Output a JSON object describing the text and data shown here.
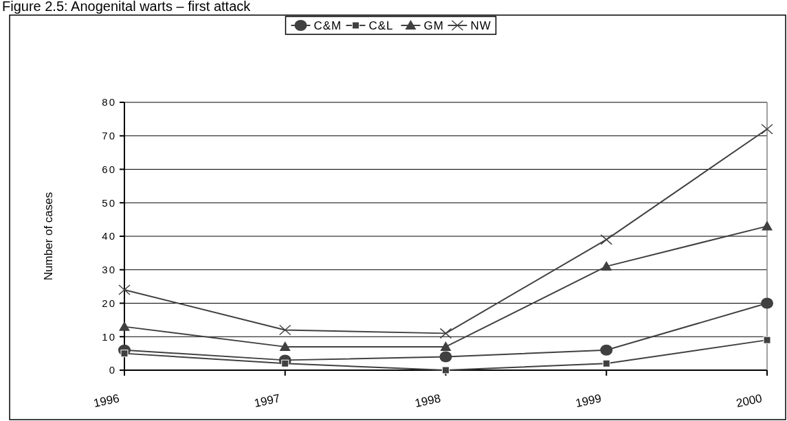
{
  "chart_data": {
    "type": "line",
    "title": "Figure 2.5: Anogenital warts – first attack",
    "ylabel": "Number of cases",
    "categories": [
      "1996",
      "1997",
      "1998",
      "1999",
      "2000"
    ],
    "series": [
      {
        "name": "C&M",
        "color": "#404040",
        "marker": "circle",
        "values": [
          6,
          3,
          4,
          6,
          20
        ]
      },
      {
        "name": "C&L",
        "color": "#404040",
        "marker": "square",
        "values": [
          5,
          2,
          0,
          2,
          9
        ]
      },
      {
        "name": "GM",
        "color": "#404040",
        "marker": "triangle",
        "values": [
          13,
          7,
          7,
          31,
          43
        ]
      },
      {
        "name": "NW",
        "color": "#404040",
        "marker": "cross",
        "values": [
          24,
          12,
          11,
          39,
          72
        ]
      }
    ],
    "ylim": [
      0,
      80
    ],
    "yticks": [
      0,
      10,
      20,
      30,
      40,
      50,
      60,
      70,
      80
    ],
    "grid": "y",
    "legend": "top"
  }
}
